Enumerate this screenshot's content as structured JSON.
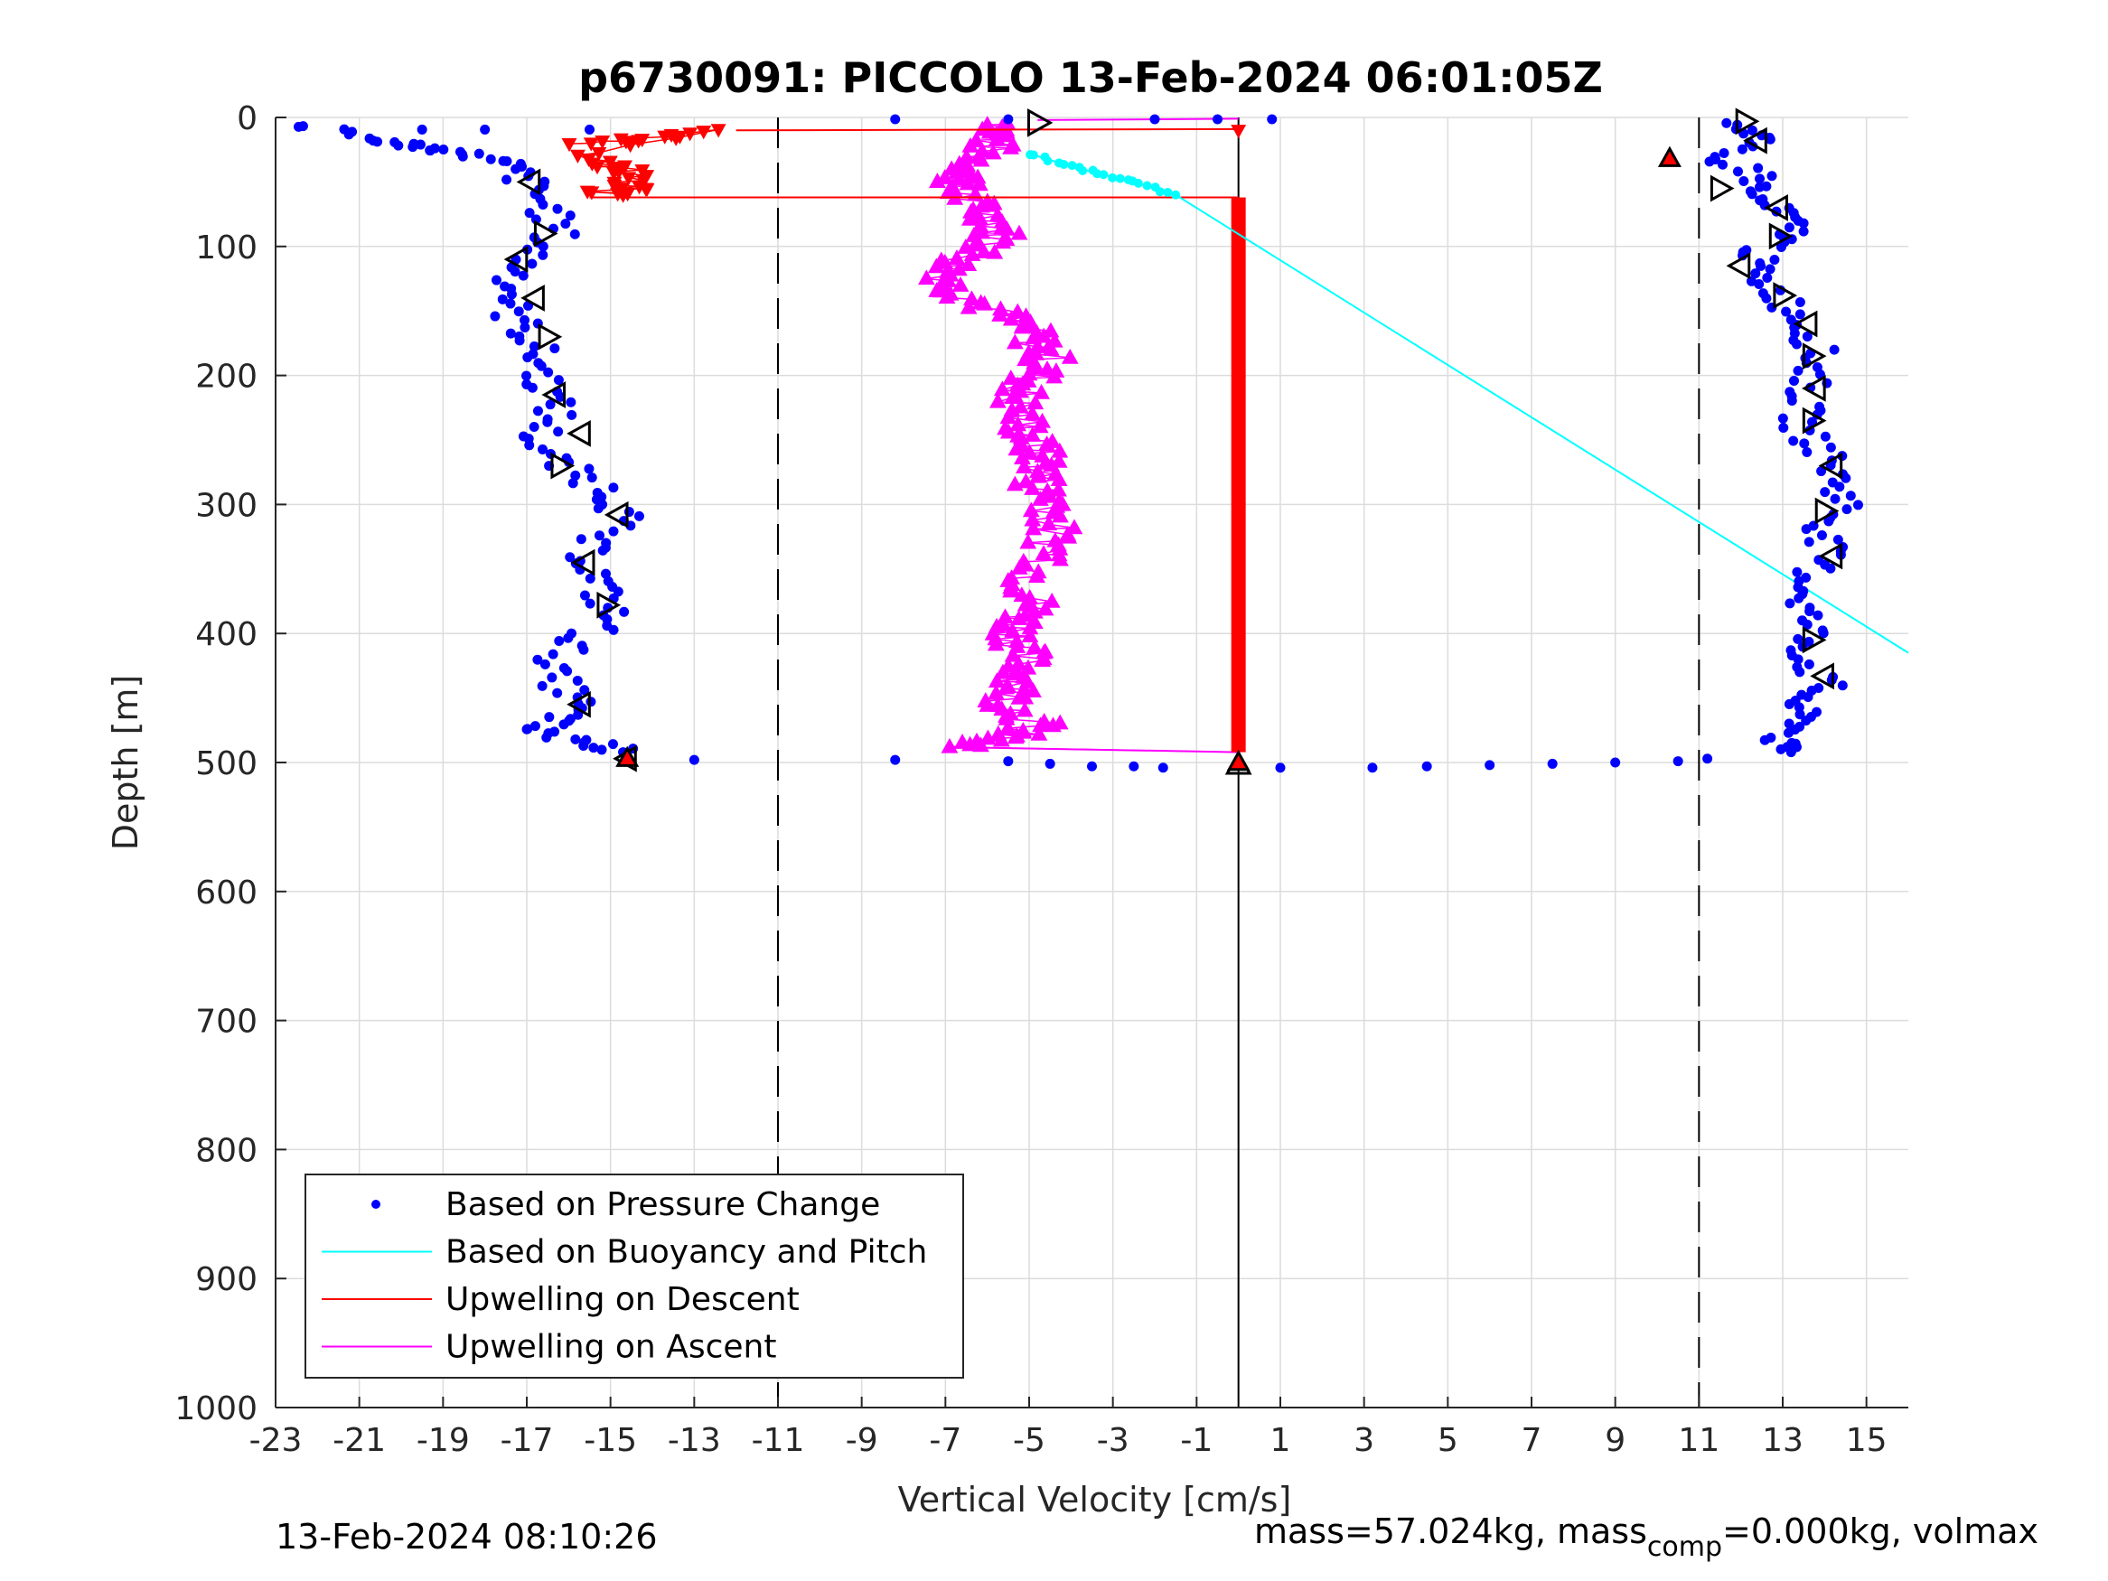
{
  "chart_data": {
    "type": "scatter",
    "title": "p6730091: PICCOLO 13-Feb-2024 06:01:05Z",
    "xlabel": "Vertical Velocity [cm/s]",
    "ylabel": "Depth [m]",
    "xlim": [
      -23,
      16
    ],
    "ylim": [
      0,
      1000
    ],
    "y_reversed": true,
    "grid": true,
    "xticks": [
      -23,
      -21,
      -19,
      -17,
      -15,
      -13,
      -11,
      -9,
      -7,
      -5,
      -3,
      -1,
      1,
      3,
      5,
      7,
      9,
      11,
      13,
      15
    ],
    "yticks": [
      0,
      100,
      200,
      300,
      400,
      500,
      600,
      700,
      800,
      900,
      1000
    ],
    "reference_lines": [
      {
        "x": -11,
        "style": "dashed"
      },
      {
        "x": 11,
        "style": "dashed"
      },
      {
        "x": 0,
        "style": "solid"
      }
    ],
    "legend_placement": "bottom-left",
    "series": [
      {
        "name": "Based on Pressure Change",
        "color": "#0000ff",
        "marker": "dot",
        "descent": [
          [
            -22.5,
            6
          ],
          [
            -20.5,
            18
          ],
          [
            -19.5,
            22
          ],
          [
            -18.5,
            28
          ],
          [
            -17.5,
            36
          ],
          [
            -17,
            50
          ],
          [
            -16.5,
            70
          ],
          [
            -16.3,
            90
          ],
          [
            -17,
            110
          ],
          [
            -17.3,
            130
          ],
          [
            -17.4,
            150
          ],
          [
            -16.9,
            170
          ],
          [
            -16.7,
            190
          ],
          [
            -16.5,
            210
          ],
          [
            -16.3,
            230
          ],
          [
            -16.8,
            250
          ],
          [
            -16.2,
            270
          ],
          [
            -15,
            290
          ],
          [
            -14.7,
            310
          ],
          [
            -15.6,
            330
          ],
          [
            -15.4,
            350
          ],
          [
            -15.2,
            370
          ],
          [
            -15,
            390
          ],
          [
            -16,
            410
          ],
          [
            -16.5,
            430
          ],
          [
            -15.8,
            450
          ],
          [
            -16.1,
            465
          ],
          [
            -17,
            475
          ],
          [
            -15.4,
            485
          ],
          [
            -14.7,
            492
          ]
        ],
        "ascent": [
          [
            12,
            5
          ],
          [
            12.5,
            15
          ],
          [
            11.2,
            30
          ],
          [
            12.5,
            45
          ],
          [
            12.2,
            60
          ],
          [
            13,
            75
          ],
          [
            13.3,
            90
          ],
          [
            12.4,
            105
          ],
          [
            12.3,
            120
          ],
          [
            13,
            140
          ],
          [
            13.5,
            160
          ],
          [
            13.8,
            180
          ],
          [
            13.7,
            200
          ],
          [
            13.5,
            220
          ],
          [
            13.4,
            240
          ],
          [
            14,
            260
          ],
          [
            14.3,
            280
          ],
          [
            14.5,
            300
          ],
          [
            14,
            320
          ],
          [
            14,
            340
          ],
          [
            13.6,
            360
          ],
          [
            13.5,
            380
          ],
          [
            13.7,
            400
          ],
          [
            13.5,
            420
          ],
          [
            14,
            440
          ],
          [
            13.3,
            455
          ],
          [
            13.5,
            470
          ],
          [
            12.8,
            485
          ],
          [
            13.2,
            492
          ]
        ],
        "surface_transition": [
          [
            -13,
            498
          ],
          [
            -8.2,
            498
          ],
          [
            -5.5,
            499
          ],
          [
            -4.5,
            501
          ],
          [
            -3.5,
            503
          ],
          [
            -2.5,
            503
          ],
          [
            -1.8,
            504
          ],
          [
            1,
            504
          ],
          [
            3.2,
            504
          ],
          [
            4.5,
            503
          ],
          [
            6,
            502
          ],
          [
            7.5,
            501
          ],
          [
            9,
            500
          ],
          [
            10.5,
            499
          ],
          [
            11.2,
            497
          ]
        ]
      },
      {
        "name": "Based on Buoyancy and Pitch",
        "color": "#00ffff",
        "marker": "line",
        "points": [
          [
            -5,
            28
          ],
          [
            -4.5,
            33
          ],
          [
            -4,
            38
          ],
          [
            -3.5,
            42
          ],
          [
            -3,
            46
          ],
          [
            -2.5,
            50
          ],
          [
            -2,
            55
          ],
          [
            -1.5,
            60
          ],
          [
            16,
            415
          ]
        ]
      },
      {
        "name": "Upwelling on Descent",
        "color": "#ff0000",
        "marker": "triangle-down",
        "points": [
          [
            -15.8,
            20
          ],
          [
            -15,
            18
          ],
          [
            -14.2,
            16
          ],
          [
            -13.4,
            14
          ],
          [
            -12,
            10
          ],
          [
            -15.5,
            28
          ],
          [
            -14.8,
            34
          ],
          [
            -15.2,
            38
          ],
          [
            -14.5,
            42
          ],
          [
            -14.2,
            46
          ],
          [
            -15,
            52
          ],
          [
            -14.4,
            55
          ],
          [
            -15.4,
            58
          ],
          [
            -14.7,
            60
          ],
          [
            0,
            10
          ],
          [
            0,
            62
          ],
          [
            0,
            100
          ],
          [
            0,
            200
          ],
          [
            0,
            300
          ],
          [
            0,
            400
          ],
          [
            0,
            490
          ],
          [
            -14.7,
            497
          ],
          [
            0,
            505
          ]
        ],
        "surface_jump_x": 0
      },
      {
        "name": "Upwelling on Ascent",
        "color": "#ff00ff",
        "marker": "triangle-up",
        "points": [
          [
            -5.5,
            5
          ],
          [
            -5.8,
            15
          ],
          [
            -6.1,
            30
          ],
          [
            -6.5,
            45
          ],
          [
            -6.8,
            55
          ],
          [
            -6.2,
            70
          ],
          [
            -5.6,
            85
          ],
          [
            -5.9,
            100
          ],
          [
            -6.8,
            115
          ],
          [
            -6.9,
            130
          ],
          [
            -6.1,
            145
          ],
          [
            -5.2,
            160
          ],
          [
            -4.8,
            175
          ],
          [
            -4.5,
            190
          ],
          [
            -5,
            205
          ],
          [
            -5.3,
            220
          ],
          [
            -5.1,
            240
          ],
          [
            -4.9,
            255
          ],
          [
            -4.6,
            270
          ],
          [
            -4.8,
            285
          ],
          [
            -4.3,
            300
          ],
          [
            -4.5,
            320
          ],
          [
            -4.4,
            340
          ],
          [
            -5,
            360
          ],
          [
            -4.9,
            380
          ],
          [
            -5.3,
            395
          ],
          [
            -5.2,
            410
          ],
          [
            -5.1,
            425
          ],
          [
            -5.2,
            440
          ],
          [
            -5.5,
            455
          ],
          [
            -4.8,
            470
          ],
          [
            -5.5,
            480
          ],
          [
            -6.9,
            488
          ],
          [
            0,
            492
          ]
        ]
      }
    ],
    "markers_descent_triangles": [
      [
        -16.9,
        50
      ],
      [
        -16.6,
        90
      ],
      [
        -17.2,
        110
      ],
      [
        -16.8,
        140
      ],
      [
        -16.5,
        170
      ],
      [
        -16.3,
        215
      ],
      [
        -15.7,
        245
      ],
      [
        -16.2,
        270
      ],
      [
        -14.8,
        308
      ],
      [
        -15.6,
        345
      ],
      [
        -15.1,
        378
      ],
      [
        -15.7,
        455
      ],
      [
        -14.6,
        497
      ]
    ],
    "markers_ascent_triangles": [
      [
        12.1,
        3
      ],
      [
        12.4,
        18
      ],
      [
        11.5,
        55
      ],
      [
        12.9,
        70
      ],
      [
        12.9,
        92
      ],
      [
        12,
        115
      ],
      [
        13,
        138
      ],
      [
        13.6,
        160
      ],
      [
        13.7,
        185
      ],
      [
        13.8,
        210
      ],
      [
        13.7,
        235
      ],
      [
        14.2,
        270
      ],
      [
        14,
        305
      ],
      [
        14.2,
        340
      ],
      [
        13.7,
        405
      ],
      [
        14,
        433
      ]
    ],
    "markers_surface_triangles": [
      [
        -4.8,
        2
      ],
      [
        0,
        502
      ]
    ],
    "red_highlight_markers": [
      [
        10.3,
        32
      ],
      [
        -14.6,
        497
      ],
      [
        0,
        500
      ]
    ]
  },
  "legend": {
    "items": [
      {
        "label": "Based on Pressure Change",
        "color": "#0000ff",
        "kind": "dot"
      },
      {
        "label": "Based on Buoyancy and Pitch",
        "color": "#00ffff",
        "kind": "line"
      },
      {
        "label": "Upwelling on Descent",
        "color": "#ff0000",
        "kind": "line"
      },
      {
        "label": "Upwelling on Ascent",
        "color": "#ff00ff",
        "kind": "line"
      }
    ]
  },
  "footer": {
    "timestamp": "13-Feb-2024 08:10:26",
    "mass_prefix": "mass=57.024kg, mass",
    "mass_sub": "comp",
    "mass_suffix": "=0.000kg, volmax"
  }
}
